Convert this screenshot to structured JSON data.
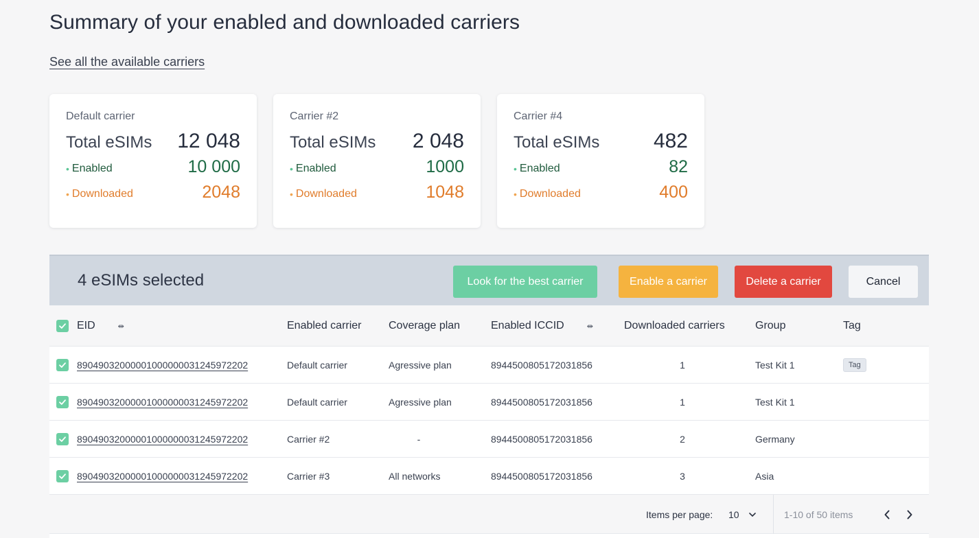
{
  "page_title": "Summary of your enabled and downloaded carriers",
  "see_all_link": "See all the available carriers",
  "cards": [
    {
      "name": "Default carrier",
      "total_label": "Total eSIMs",
      "total": "12 048",
      "enabled_label": "Enabled",
      "enabled": "10 000",
      "downloaded_label": "Downloaded",
      "downloaded": "2048"
    },
    {
      "name": "Carrier #2",
      "total_label": "Total eSIMs",
      "total": "2 048",
      "enabled_label": "Enabled",
      "enabled": "1000",
      "downloaded_label": "Downloaded",
      "downloaded": "1048"
    },
    {
      "name": "Carrier #4",
      "total_label": "Total eSIMs",
      "total": "482",
      "enabled_label": "Enabled",
      "enabled": "82",
      "downloaded_label": "Downloaded",
      "downloaded": "400"
    }
  ],
  "selection_bar": {
    "text": "4 eSIMs selected",
    "best_carrier_label": "Look for the best carrier",
    "enable_label": "Enable a carrier",
    "delete_label": "Delete a carrier",
    "cancel_label": "Cancel"
  },
  "table": {
    "columns": {
      "eid": "EID",
      "enabled_carrier": "Enabled carrier",
      "coverage_plan": "Coverage plan",
      "enabled_iccid": "Enabled ICCID",
      "downloaded_carriers": "Downloaded carriers",
      "group": "Group",
      "tag": "Tag"
    },
    "rows": [
      {
        "eid": "89049032000001000000031245972202",
        "enabled_carrier": "Default carrier",
        "coverage_plan": "Agressive plan",
        "iccid": "8944500805172031856",
        "downloaded": "1",
        "group": "Test Kit 1",
        "tag": "Tag"
      },
      {
        "eid": "89049032000001000000031245972202",
        "enabled_carrier": "Default carrier",
        "coverage_plan": "Agressive plan",
        "iccid": "8944500805172031856",
        "downloaded": "1",
        "group": "Test Kit 1",
        "tag": ""
      },
      {
        "eid": "89049032000001000000031245972202",
        "enabled_carrier": "Carrier #2",
        "coverage_plan": "-",
        "iccid": "8944500805172031856",
        "downloaded": "2",
        "group": "Germany",
        "tag": ""
      },
      {
        "eid": "89049032000001000000031245972202",
        "enabled_carrier": "Carrier #3",
        "coverage_plan": "All networks",
        "iccid": "8944500805172031856",
        "downloaded": "3",
        "group": "Asia",
        "tag": ""
      }
    ]
  },
  "pagination": {
    "items_per_page_label": "Items per page:",
    "items_per_page_value": "10",
    "range_text": "1-10 of 50 items"
  },
  "colors": {
    "accent_green": "#6ccfa3",
    "enable_orange": "#f5b33f",
    "delete_red": "#e2483f",
    "downloaded_orange": "#e07c2b",
    "enabled_green": "#1f6b46"
  },
  "icons": [
    "check-icon",
    "column-resize-icon",
    "chevron-down-icon",
    "chevron-left-icon",
    "chevron-right-icon",
    "dot-icon"
  ]
}
